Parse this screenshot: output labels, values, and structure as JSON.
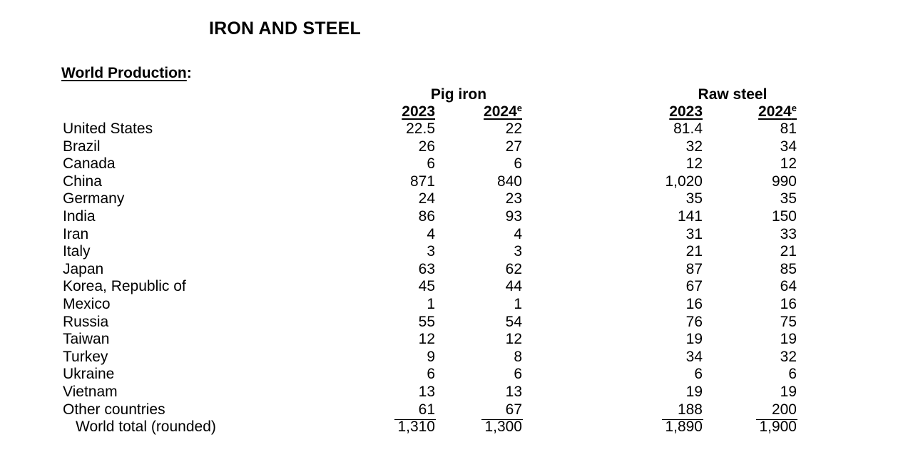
{
  "title": "IRON AND STEEL",
  "section": {
    "label": "World Production",
    "suffix": ":"
  },
  "groups": {
    "pig_iron": "Pig iron",
    "raw_steel": "Raw steel"
  },
  "years": {
    "y1": "2023",
    "y2": "2024",
    "y2_sup": "e"
  },
  "rows": [
    {
      "country": "United States",
      "pig_2023": "22.5",
      "pig_2024": "22",
      "raw_2023": "81.4",
      "raw_2024": "81"
    },
    {
      "country": "Brazil",
      "pig_2023": "26",
      "pig_2024": "27",
      "raw_2023": "32",
      "raw_2024": "34"
    },
    {
      "country": "Canada",
      "pig_2023": "6",
      "pig_2024": "6",
      "raw_2023": "12",
      "raw_2024": "12"
    },
    {
      "country": "China",
      "pig_2023": "871",
      "pig_2024": "840",
      "raw_2023": "1,020",
      "raw_2024": "990"
    },
    {
      "country": "Germany",
      "pig_2023": "24",
      "pig_2024": "23",
      "raw_2023": "35",
      "raw_2024": "35"
    },
    {
      "country": "India",
      "pig_2023": "86",
      "pig_2024": "93",
      "raw_2023": "141",
      "raw_2024": "150"
    },
    {
      "country": "Iran",
      "pig_2023": "4",
      "pig_2024": "4",
      "raw_2023": "31",
      "raw_2024": "33"
    },
    {
      "country": "Italy",
      "pig_2023": "3",
      "pig_2024": "3",
      "raw_2023": "21",
      "raw_2024": "21"
    },
    {
      "country": "Japan",
      "pig_2023": "63",
      "pig_2024": "62",
      "raw_2023": "87",
      "raw_2024": "85"
    },
    {
      "country": "Korea, Republic of",
      "pig_2023": "45",
      "pig_2024": "44",
      "raw_2023": "67",
      "raw_2024": "64"
    },
    {
      "country": "Mexico",
      "pig_2023": "1",
      "pig_2024": "1",
      "raw_2023": "16",
      "raw_2024": "16"
    },
    {
      "country": "Russia",
      "pig_2023": "55",
      "pig_2024": "54",
      "raw_2023": "76",
      "raw_2024": "75"
    },
    {
      "country": "Taiwan",
      "pig_2023": "12",
      "pig_2024": "12",
      "raw_2023": "19",
      "raw_2024": "19"
    },
    {
      "country": "Turkey",
      "pig_2023": "9",
      "pig_2024": "8",
      "raw_2023": "34",
      "raw_2024": "32"
    },
    {
      "country": "Ukraine",
      "pig_2023": "6",
      "pig_2024": "6",
      "raw_2023": "6",
      "raw_2024": "6"
    },
    {
      "country": "Vietnam",
      "pig_2023": "13",
      "pig_2024": "13",
      "raw_2023": "19",
      "raw_2024": "19"
    },
    {
      "country": "Other countries",
      "pig_2023": "61",
      "pig_2024": "67",
      "raw_2023": "188",
      "raw_2024": "200"
    },
    {
      "country": "World total (rounded)",
      "pig_2023": "1,310",
      "pig_2024": "1,300",
      "raw_2023": "1,890",
      "raw_2024": "1,900"
    }
  ]
}
